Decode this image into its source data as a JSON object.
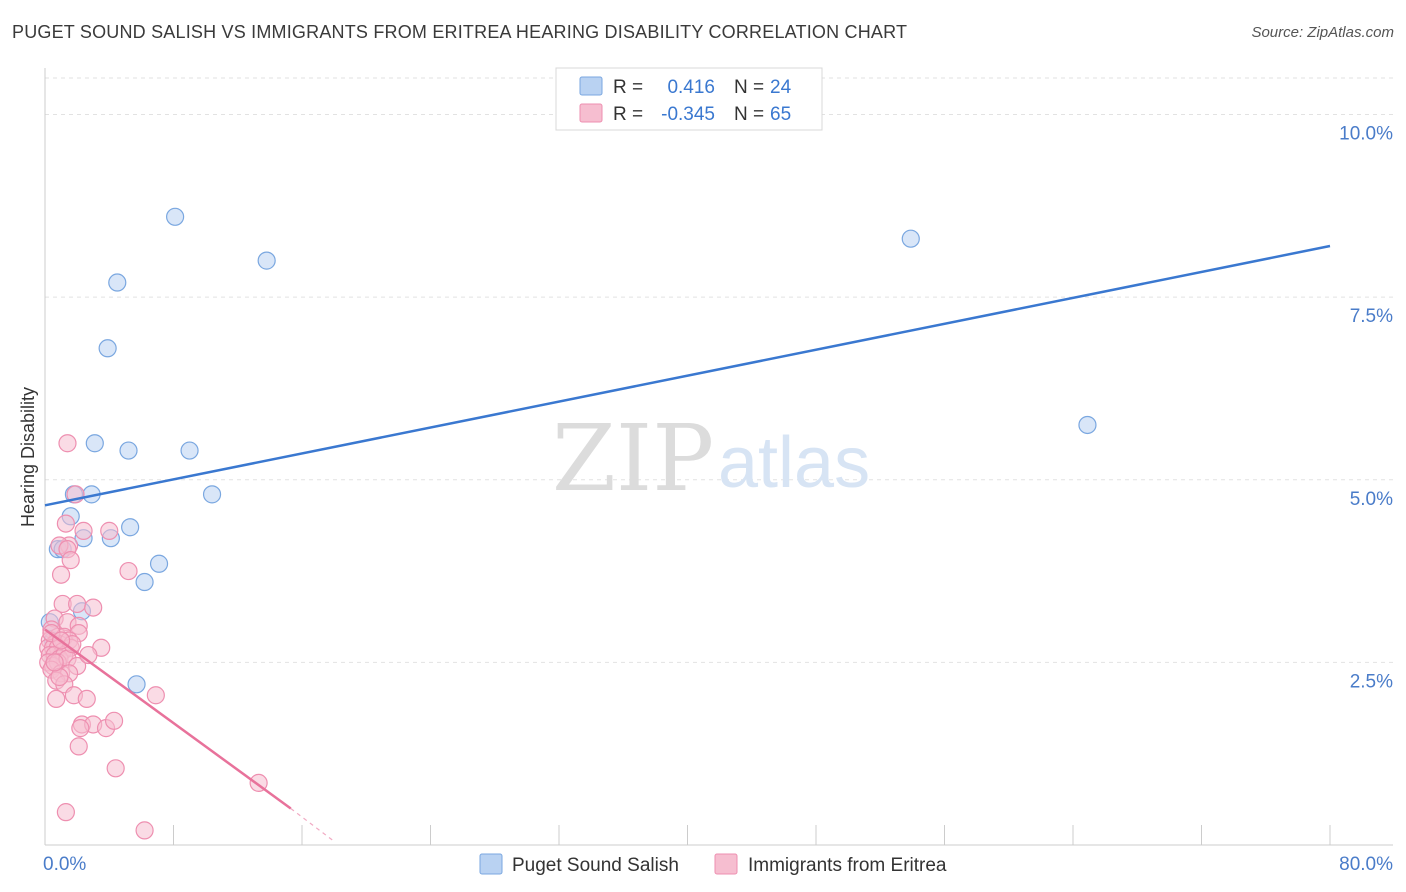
{
  "title": "PUGET SOUND SALISH VS IMMIGRANTS FROM ERITREA HEARING DISABILITY CORRELATION CHART",
  "source": "Source: ZipAtlas.com",
  "watermark": {
    "zip": "ZIP",
    "atlas": "atlas"
  },
  "colors": {
    "blue_fill": "#b9d2f2",
    "blue_stroke": "#7aa7e0",
    "blue_line": "#3a78d0",
    "pink_fill": "#f6bed0",
    "pink_stroke": "#ee8fb0",
    "pink_line": "#e8729b",
    "grid": "#e2e2e2",
    "tick_text": "#4a7cc9"
  },
  "chart_data": {
    "type": "scatter",
    "title": "PUGET SOUND SALISH VS IMMIGRANTS FROM ERITREA HEARING DISABILITY CORRELATION CHART",
    "xlabel": "",
    "ylabel": "Hearing Disability",
    "xlim": [
      0,
      80
    ],
    "ylim": [
      0,
      10.5
    ],
    "x_tick_labels": [
      {
        "value": 0,
        "label": "0.0%"
      },
      {
        "value": 80,
        "label": "80.0%"
      }
    ],
    "y_ticks": [
      {
        "value": 2.5,
        "label": "2.5%"
      },
      {
        "value": 5.0,
        "label": "5.0%"
      },
      {
        "value": 7.5,
        "label": "7.5%"
      },
      {
        "value": 10.0,
        "label": "10.0%"
      }
    ],
    "legend": [
      {
        "series": "Puget Sound Salish",
        "r_label": "R =",
        "r_value": "0.416",
        "n_label": "N =",
        "n_value": "24"
      },
      {
        "series": "Immigrants from Eritrea",
        "r_label": "R =",
        "r_value": "-0.345",
        "n_label": "N =",
        "n_value": "65"
      }
    ],
    "series": [
      {
        "name": "Puget Sound Salish",
        "color": "blue",
        "points": [
          [
            8.1,
            8.6
          ],
          [
            13.8,
            8.0
          ],
          [
            4.5,
            7.7
          ],
          [
            3.9,
            6.8
          ],
          [
            3.1,
            5.5
          ],
          [
            5.2,
            5.4
          ],
          [
            9.0,
            5.4
          ],
          [
            10.4,
            4.8
          ],
          [
            1.8,
            4.8
          ],
          [
            2.9,
            4.8
          ],
          [
            1.6,
            4.5
          ],
          [
            5.3,
            4.35
          ],
          [
            4.1,
            4.2
          ],
          [
            2.4,
            4.2
          ],
          [
            0.8,
            4.05
          ],
          [
            1.1,
            4.05
          ],
          [
            7.1,
            3.85
          ],
          [
            6.2,
            3.6
          ],
          [
            0.3,
            3.05
          ],
          [
            2.3,
            3.2
          ],
          [
            5.7,
            2.2
          ],
          [
            53.9,
            8.3
          ],
          [
            64.9,
            5.75
          ],
          [
            0.5,
            2.8
          ]
        ],
        "trend": {
          "x": [
            0,
            80
          ],
          "y": [
            4.65,
            8.2
          ]
        }
      },
      {
        "name": "Immigrants from Eritrea",
        "color": "pink",
        "points": [
          [
            1.4,
            5.5
          ],
          [
            1.9,
            4.8
          ],
          [
            1.3,
            4.4
          ],
          [
            4.0,
            4.3
          ],
          [
            2.4,
            4.3
          ],
          [
            1.5,
            4.1
          ],
          [
            0.9,
            4.1
          ],
          [
            1.4,
            4.05
          ],
          [
            1.6,
            3.9
          ],
          [
            1.0,
            3.7
          ],
          [
            5.2,
            3.75
          ],
          [
            1.1,
            3.3
          ],
          [
            2.0,
            3.3
          ],
          [
            3.0,
            3.25
          ],
          [
            0.6,
            3.1
          ],
          [
            1.4,
            3.05
          ],
          [
            2.1,
            3.0
          ],
          [
            0.4,
            2.95
          ],
          [
            0.8,
            2.85
          ],
          [
            1.2,
            2.85
          ],
          [
            2.1,
            2.9
          ],
          [
            0.3,
            2.8
          ],
          [
            0.6,
            2.75
          ],
          [
            0.9,
            2.75
          ],
          [
            1.5,
            2.8
          ],
          [
            0.2,
            2.7
          ],
          [
            0.5,
            2.7
          ],
          [
            0.8,
            2.7
          ],
          [
            1.1,
            2.65
          ],
          [
            1.6,
            2.7
          ],
          [
            3.5,
            2.7
          ],
          [
            0.3,
            2.6
          ],
          [
            0.6,
            2.6
          ],
          [
            0.9,
            2.55
          ],
          [
            1.2,
            2.6
          ],
          [
            0.2,
            2.5
          ],
          [
            0.5,
            2.45
          ],
          [
            0.8,
            2.5
          ],
          [
            1.4,
            2.55
          ],
          [
            2.0,
            2.45
          ],
          [
            0.4,
            2.4
          ],
          [
            1.0,
            2.35
          ],
          [
            1.5,
            2.35
          ],
          [
            0.7,
            2.25
          ],
          [
            1.2,
            2.2
          ],
          [
            0.9,
            2.3
          ],
          [
            1.8,
            2.05
          ],
          [
            2.6,
            2.0
          ],
          [
            0.7,
            2.0
          ],
          [
            6.9,
            2.05
          ],
          [
            2.3,
            1.65
          ],
          [
            3.0,
            1.65
          ],
          [
            3.8,
            1.6
          ],
          [
            4.3,
            1.7
          ],
          [
            2.2,
            1.6
          ],
          [
            2.1,
            1.35
          ],
          [
            4.4,
            1.05
          ],
          [
            13.3,
            0.85
          ],
          [
            1.3,
            0.45
          ],
          [
            6.2,
            0.2
          ],
          [
            0.4,
            2.9
          ],
          [
            1.7,
            2.75
          ],
          [
            0.6,
            2.5
          ],
          [
            1.0,
            2.8
          ],
          [
            2.7,
            2.6
          ]
        ],
        "trend": {
          "x": [
            0,
            15.3
          ],
          "y": [
            2.95,
            0.5
          ]
        },
        "trend_extension": {
          "x": [
            15.3,
            18.0
          ],
          "y": [
            0.5,
            0.05
          ]
        }
      }
    ],
    "bottom_legend": [
      "Puget Sound Salish",
      "Immigrants from Eritrea"
    ]
  }
}
